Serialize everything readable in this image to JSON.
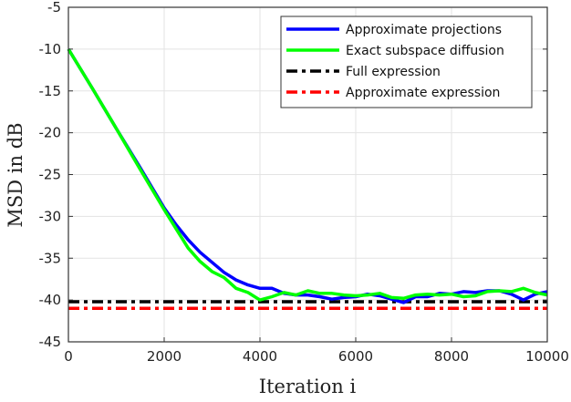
{
  "chart_data": {
    "type": "line",
    "title": "",
    "xlabel": "Iteration i",
    "ylabel": "MSD in dB",
    "xlim": [
      0,
      10000
    ],
    "ylim": [
      -45,
      -5
    ],
    "xticks": [
      0,
      2000,
      4000,
      6000,
      8000,
      10000
    ],
    "yticks": [
      -5,
      -10,
      -15,
      -20,
      -25,
      -30,
      -35,
      -40,
      -45
    ],
    "grid": true,
    "legend_position": "top-right",
    "series": [
      {
        "name": "Approximate projections",
        "color": "#0000ff",
        "style": "solid",
        "x": [
          0,
          500,
          1000,
          1500,
          2000,
          2250,
          2500,
          2750,
          3000,
          3250,
          3500,
          3750,
          4000,
          4250,
          4500,
          4750,
          5000,
          5250,
          5500,
          5750,
          6000,
          6250,
          6500,
          6750,
          7000,
          7250,
          7500,
          7750,
          8000,
          8250,
          8500,
          8750,
          9000,
          9250,
          9500,
          9750,
          10000
        ],
        "y": [
          -10,
          -14.7,
          -19.5,
          -24.2,
          -29,
          -31,
          -32.8,
          -34.3,
          -35.5,
          -36.7,
          -37.6,
          -38.2,
          -38.6,
          -38.6,
          -39.2,
          -39.4,
          -39.4,
          -39.6,
          -39.9,
          -39.7,
          -39.6,
          -39.3,
          -39.5,
          -39.9,
          -40.3,
          -39.6,
          -39.6,
          -39.2,
          -39.3,
          -39.0,
          -39.1,
          -38.9,
          -38.9,
          -39.3,
          -40.0,
          -39.3,
          -39.0
        ]
      },
      {
        "name": "Exact subspace diffusion",
        "color": "#00ff00",
        "style": "solid",
        "x": [
          0,
          500,
          1000,
          1500,
          2000,
          2250,
          2500,
          2750,
          3000,
          3250,
          3500,
          3750,
          4000,
          4250,
          4500,
          4750,
          5000,
          5250,
          5500,
          5750,
          6000,
          6250,
          6500,
          6750,
          7000,
          7250,
          7500,
          7750,
          8000,
          8250,
          8500,
          8750,
          9000,
          9250,
          9500,
          9750,
          10000
        ],
        "y": [
          -10,
          -14.7,
          -19.5,
          -24.4,
          -29.2,
          -31.5,
          -33.8,
          -35.4,
          -36.6,
          -37.3,
          -38.6,
          -39.1,
          -40.0,
          -39.6,
          -39.1,
          -39.4,
          -38.9,
          -39.2,
          -39.2,
          -39.4,
          -39.5,
          -39.4,
          -39.2,
          -39.7,
          -39.8,
          -39.4,
          -39.3,
          -39.4,
          -39.3,
          -39.6,
          -39.5,
          -39.0,
          -38.9,
          -39.0,
          -38.6,
          -39.1,
          -39.4
        ]
      },
      {
        "name": "Full expression",
        "color": "#000000",
        "style": "dashdot",
        "x": [
          0,
          10000
        ],
        "y": [
          -40.2,
          -40.2
        ]
      },
      {
        "name": "Approximate expression",
        "color": "#ff0000",
        "style": "dashdot",
        "x": [
          0,
          10000
        ],
        "y": [
          -41,
          -41
        ]
      }
    ]
  }
}
